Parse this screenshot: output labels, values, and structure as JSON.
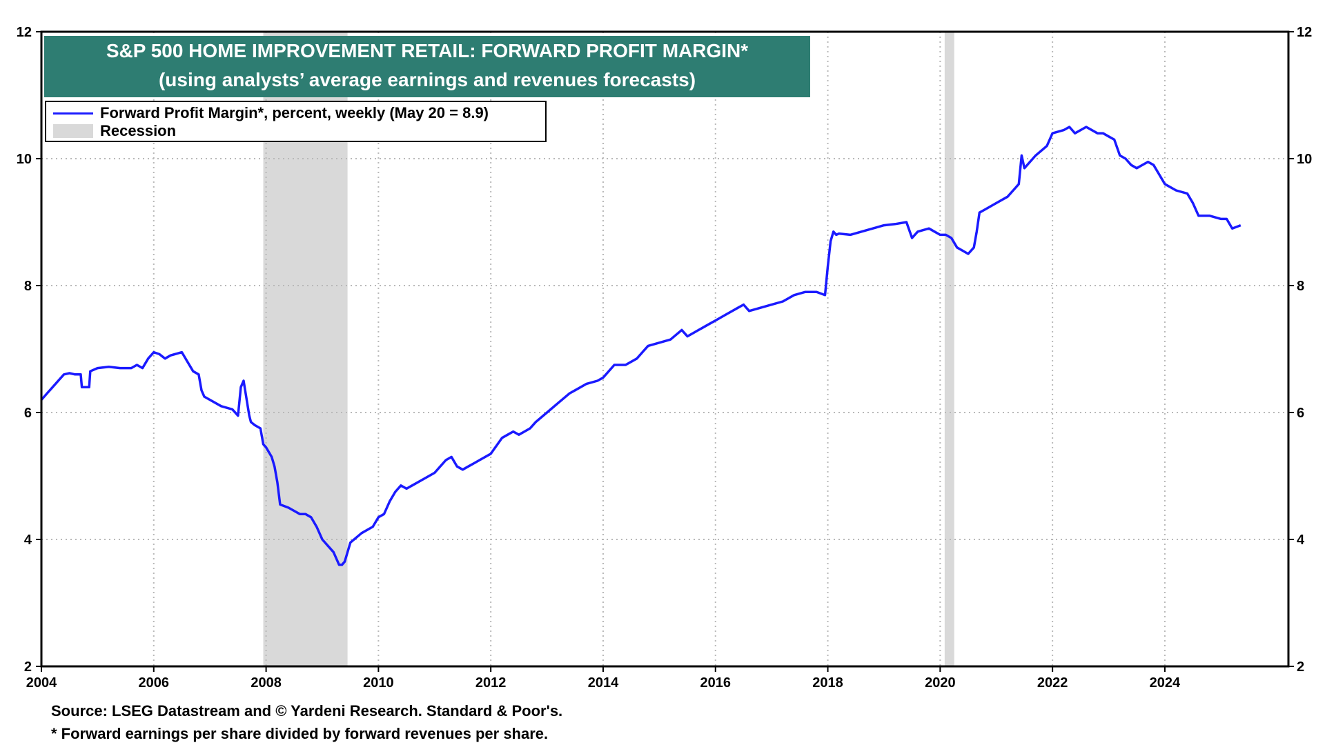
{
  "title": {
    "line1": "S&P 500 HOME IMPROVEMENT RETAIL: FORWARD PROFIT MARGIN*",
    "line2": "(using analysts’ average earnings and revenues forecasts)"
  },
  "legend": {
    "series_label": "Forward Profit Margin*, percent, weekly (May 20 = 8.9)",
    "recession_label": "Recession"
  },
  "footnotes": {
    "source": "Source: LSEG Datastream and © Yardeni Research. Standard & Poor's.",
    "note": "* Forward earnings per share divided by forward revenues per share."
  },
  "colors": {
    "title_bg": "#2e7d72",
    "series": "#1a1aff",
    "recession": "#d9d9d9"
  },
  "chart_data": {
    "type": "line",
    "xlim": [
      2004,
      2026.2
    ],
    "ylim": [
      2,
      12
    ],
    "x_ticks": [
      "2004",
      "2006",
      "2008",
      "2010",
      "2012",
      "2014",
      "2016",
      "2018",
      "2020",
      "2022",
      "2024"
    ],
    "y_ticks": [
      "2",
      "4",
      "6",
      "8",
      "10",
      "12"
    ],
    "grid": true,
    "legend_position": "top-left",
    "recessions": [
      [
        2007.95,
        2009.45
      ],
      [
        2020.08,
        2020.25
      ]
    ],
    "series": [
      {
        "name": "Forward Profit Margin*, percent, weekly (May 20 = 8.9)",
        "x": [
          2004.0,
          2004.1,
          2004.2,
          2004.3,
          2004.4,
          2004.5,
          2004.6,
          2004.7,
          2004.72,
          2004.85,
          2004.87,
          2005.0,
          2005.2,
          2005.4,
          2005.6,
          2005.7,
          2005.8,
          2005.9,
          2006.0,
          2006.1,
          2006.2,
          2006.3,
          2006.5,
          2006.6,
          2006.7,
          2006.8,
          2006.85,
          2006.9,
          2007.0,
          2007.2,
          2007.4,
          2007.5,
          2007.55,
          2007.6,
          2007.7,
          2007.73,
          2007.8,
          2007.9,
          2007.95,
          2008.0,
          2008.1,
          2008.15,
          2008.2,
          2008.25,
          2008.4,
          2008.5,
          2008.6,
          2008.7,
          2008.8,
          2008.9,
          2009.0,
          2009.1,
          2009.2,
          2009.3,
          2009.35,
          2009.4,
          2009.5,
          2009.7,
          2009.9,
          2010.0,
          2010.1,
          2010.2,
          2010.3,
          2010.4,
          2010.5,
          2010.6,
          2010.8,
          2011.0,
          2011.2,
          2011.3,
          2011.4,
          2011.5,
          2011.6,
          2011.7,
          2011.8,
          2012.0,
          2012.2,
          2012.3,
          2012.4,
          2012.5,
          2012.6,
          2012.7,
          2012.8,
          2013.0,
          2013.2,
          2013.4,
          2013.5,
          2013.7,
          2013.9,
          2014.0,
          2014.2,
          2014.4,
          2014.6,
          2014.7,
          2014.8,
          2015.0,
          2015.2,
          2015.4,
          2015.5,
          2015.7,
          2015.9,
          2016.0,
          2016.2,
          2016.4,
          2016.5,
          2016.6,
          2016.8,
          2017.0,
          2017.2,
          2017.4,
          2017.6,
          2017.8,
          2017.95,
          2018.0,
          2018.05,
          2018.1,
          2018.15,
          2018.2,
          2018.4,
          2018.6,
          2018.8,
          2019.0,
          2019.2,
          2019.4,
          2019.5,
          2019.6,
          2019.8,
          2019.9,
          2020.0,
          2020.1,
          2020.2,
          2020.3,
          2020.4,
          2020.5,
          2020.6,
          2020.65,
          2020.7,
          2020.8,
          2021.0,
          2021.2,
          2021.3,
          2021.4,
          2021.45,
          2021.5,
          2021.7,
          2021.9,
          2022.0,
          2022.2,
          2022.3,
          2022.4,
          2022.5,
          2022.6,
          2022.8,
          2022.9,
          2023.0,
          2023.1,
          2023.2,
          2023.3,
          2023.4,
          2023.5,
          2023.7,
          2023.8,
          2023.9,
          2024.0,
          2024.2,
          2024.4,
          2024.5,
          2024.6,
          2024.8,
          2025.0,
          2025.1,
          2025.2,
          2025.35
        ],
        "values": [
          6.2,
          6.3,
          6.4,
          6.5,
          6.6,
          6.62,
          6.6,
          6.6,
          6.4,
          6.4,
          6.65,
          6.7,
          6.72,
          6.7,
          6.7,
          6.75,
          6.7,
          6.85,
          6.95,
          6.92,
          6.85,
          6.9,
          6.95,
          6.8,
          6.65,
          6.6,
          6.35,
          6.25,
          6.2,
          6.1,
          6.05,
          5.95,
          6.4,
          6.5,
          5.95,
          5.85,
          5.8,
          5.75,
          5.5,
          5.45,
          5.3,
          5.15,
          4.9,
          4.55,
          4.5,
          4.45,
          4.4,
          4.4,
          4.35,
          4.2,
          4.0,
          3.9,
          3.8,
          3.6,
          3.6,
          3.65,
          3.95,
          4.1,
          4.2,
          4.35,
          4.4,
          4.6,
          4.75,
          4.85,
          4.8,
          4.85,
          4.95,
          5.05,
          5.25,
          5.3,
          5.15,
          5.1,
          5.15,
          5.2,
          5.25,
          5.35,
          5.6,
          5.65,
          5.7,
          5.65,
          5.7,
          5.75,
          5.85,
          6.0,
          6.15,
          6.3,
          6.35,
          6.45,
          6.5,
          6.55,
          6.75,
          6.75,
          6.85,
          6.95,
          7.05,
          7.1,
          7.15,
          7.3,
          7.2,
          7.3,
          7.4,
          7.45,
          7.55,
          7.65,
          7.7,
          7.6,
          7.65,
          7.7,
          7.75,
          7.85,
          7.9,
          7.9,
          7.85,
          8.3,
          8.7,
          8.85,
          8.8,
          8.82,
          8.8,
          8.85,
          8.9,
          8.95,
          8.97,
          9.0,
          8.75,
          8.85,
          8.9,
          8.85,
          8.8,
          8.8,
          8.75,
          8.6,
          8.55,
          8.5,
          8.6,
          8.85,
          9.15,
          9.2,
          9.3,
          9.4,
          9.5,
          9.6,
          10.05,
          9.85,
          10.05,
          10.2,
          10.4,
          10.45,
          10.5,
          10.4,
          10.45,
          10.5,
          10.4,
          10.4,
          10.35,
          10.3,
          10.05,
          10.0,
          9.9,
          9.85,
          9.95,
          9.9,
          9.75,
          9.6,
          9.5,
          9.45,
          9.3,
          9.1,
          9.1,
          9.05,
          9.05,
          8.9,
          8.95
        ]
      }
    ]
  }
}
